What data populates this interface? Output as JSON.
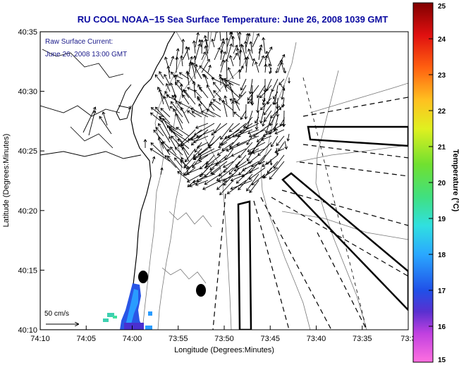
{
  "title": "RU COOL   NOAA−15  Sea Surface Temperature:  June 26, 2008 1039 GMT",
  "annotation": {
    "line1": "Raw Surface Current:",
    "line2": "June 26, 2008 13:00 GMT"
  },
  "scale_label": "50 cm/s",
  "chart_data": {
    "type": "map",
    "xlabel": "Longitude (Degrees:Minutes)",
    "ylabel": "Latitude (Degrees:Minutes)",
    "x_ticks": [
      "74:10",
      "74:05",
      "74:00",
      "73:55",
      "73:50",
      "73:45",
      "73:40",
      "73:35",
      "73:3"
    ],
    "y_ticks": [
      "40:35",
      "40:30",
      "40:25",
      "40:20",
      "40:15",
      "40:10"
    ],
    "colorbar": {
      "label": "Temperature (°C)",
      "range": [
        15,
        25
      ],
      "ticks": [
        "25",
        "24",
        "23",
        "22",
        "21",
        "20",
        "19",
        "18",
        "17",
        "16",
        "15"
      ]
    },
    "current_vector_scale_cm_s": 50,
    "markers": [
      {
        "type": "filled-ellipse",
        "lon_min": -73.985,
        "lat_min": 40.245
      },
      {
        "type": "filled-ellipse",
        "lon_min": -73.878,
        "lat_min": 40.225
      }
    ]
  },
  "colors": {
    "title": "#0a0aa0",
    "coastline": "#000000",
    "bathymetry": "#777777",
    "sst_low": "#3050e0",
    "sst_mid": "#20c0ff"
  }
}
